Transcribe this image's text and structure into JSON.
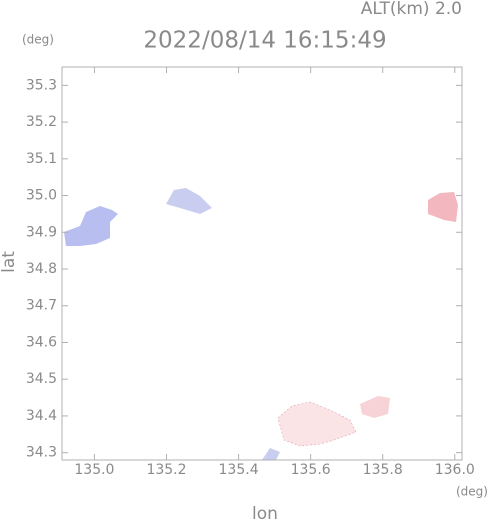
{
  "chart_data": {
    "type": "map",
    "title": "2022/08/14 16:15:49",
    "subtitle": "ALT(km) 2.0",
    "y_unit": "(deg)",
    "x_unit": "(deg)",
    "xlabel": "lon",
    "ylabel": "lat",
    "xlim": [
      134.91,
      136.02
    ],
    "ylim": [
      34.28,
      35.35
    ],
    "xticks": [
      {
        "value": 135.0,
        "label": "135.0"
      },
      135.2,
      135.4,
      135.6,
      135.8,
      {
        "value": 136.0,
        "label": "136.0"
      }
    ],
    "yticks": [
      34.3,
      34.4,
      34.5,
      34.6,
      34.7,
      34.8,
      34.9,
      {
        "value": 35.0,
        "label": "35.0"
      },
      35.1,
      35.2,
      35.3
    ]
  }
}
